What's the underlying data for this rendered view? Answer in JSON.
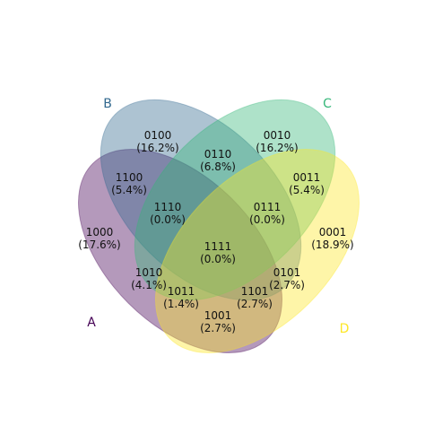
{
  "chart_data": {
    "type": "venn",
    "sets": [
      {
        "name": "A",
        "color": "#440154"
      },
      {
        "name": "B",
        "color": "#31688e"
      },
      {
        "name": "C",
        "color": "#35b779"
      },
      {
        "name": "D",
        "color": "#fde725"
      }
    ],
    "regions": [
      {
        "code": "1000",
        "percent": "(17.6%)",
        "value": 17.6
      },
      {
        "code": "0100",
        "percent": "(16.2%)",
        "value": 16.2
      },
      {
        "code": "0010",
        "percent": "(16.2%)",
        "value": 16.2
      },
      {
        "code": "0001",
        "percent": "(18.9%)",
        "value": 18.9
      },
      {
        "code": "1100",
        "percent": "(5.4%)",
        "value": 5.4
      },
      {
        "code": "0011",
        "percent": "(5.4%)",
        "value": 5.4
      },
      {
        "code": "0110",
        "percent": "(6.8%)",
        "value": 6.8
      },
      {
        "code": "1110",
        "percent": "(0.0%)",
        "value": 0.0
      },
      {
        "code": "0111",
        "percent": "(0.0%)",
        "value": 0.0
      },
      {
        "code": "1111",
        "percent": "(0.0%)",
        "value": 0.0
      },
      {
        "code": "1010",
        "percent": "(4.1%)",
        "value": 4.1
      },
      {
        "code": "0101",
        "percent": "(2.7%)",
        "value": 2.7
      },
      {
        "code": "1011",
        "percent": "(1.4%)",
        "value": 1.4
      },
      {
        "code": "1101",
        "percent": "(2.7%)",
        "value": 2.7
      },
      {
        "code": "1001",
        "percent": "(2.7%)",
        "value": 2.7
      }
    ]
  }
}
